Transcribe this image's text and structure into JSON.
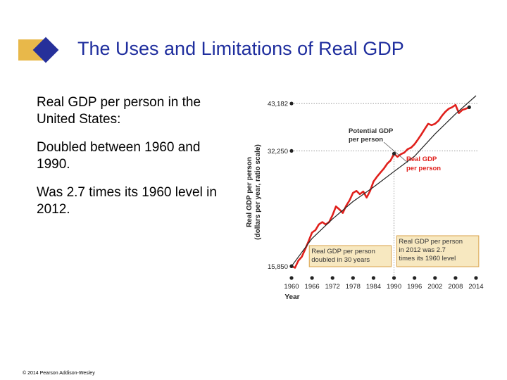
{
  "slide": {
    "title": "The Uses and Limitations of Real GDP",
    "bullets": [
      "Real GDP per person in the United States:",
      "Doubled between 1960 and 1990.",
      "Was 2.7 times its 1960 level in 2012."
    ],
    "copyright": "© 2014 Pearson Addison-Wesley"
  },
  "chart_data": {
    "type": "line",
    "xlabel": "Year",
    "ylabel_lines": [
      "Real GDP per person",
      "(dollars per year, ratio scale)"
    ],
    "x_ticks": [
      1960,
      1966,
      1972,
      1978,
      1984,
      1990,
      1996,
      2002,
      2008,
      2014
    ],
    "y_ticks": [
      15850,
      32250,
      43182
    ],
    "y_tick_labels": [
      "15,850",
      "32,250",
      "43,182"
    ],
    "xlim": [
      1960,
      2014
    ],
    "ylim": [
      15000,
      45500
    ],
    "y_scale": "log",
    "grid": false,
    "series": [
      {
        "name": "Potential GDP per person",
        "color": "#222222",
        "x": [
          1960,
          1966,
          1972,
          1978,
          1984,
          1990,
          1996,
          2002,
          2008,
          2014
        ],
        "y": [
          15850,
          18800,
          21200,
          23600,
          25800,
          28400,
          31200,
          35800,
          40500,
          45300
        ]
      },
      {
        "name": "Real GDP per person",
        "color": "#e0201c",
        "x": [
          1960,
          1961,
          1962,
          1963,
          1964,
          1965,
          1966,
          1967,
          1968,
          1969,
          1970,
          1971,
          1972,
          1973,
          1974,
          1975,
          1976,
          1977,
          1978,
          1979,
          1980,
          1981,
          1982,
          1983,
          1984,
          1985,
          1986,
          1987,
          1988,
          1989,
          1990,
          1991,
          1992,
          1993,
          1994,
          1995,
          1996,
          1997,
          1998,
          1999,
          2000,
          2001,
          2002,
          2003,
          2004,
          2005,
          2006,
          2007,
          2008,
          2009,
          2010,
          2011,
          2012
        ],
        "y": [
          15850,
          15700,
          16400,
          16800,
          17600,
          18500,
          19500,
          19800,
          20500,
          20800,
          20500,
          20800,
          21700,
          22900,
          22500,
          22000,
          23000,
          23800,
          24900,
          25200,
          24700,
          25100,
          24200,
          25200,
          26700,
          27500,
          28200,
          28900,
          29800,
          30400,
          31700,
          31100,
          31600,
          31900,
          32600,
          32900,
          33600,
          34600,
          35700,
          36900,
          38100,
          37800,
          38100,
          38800,
          40000,
          41000,
          41800,
          42200,
          42800,
          40700,
          41500,
          41800,
          42200
        ]
      }
    ],
    "marker_years": [
      1960,
      1990,
      2012
    ],
    "annotations": [
      {
        "lines": [
          "Real GDP per person",
          "doubled in 30 years"
        ]
      },
      {
        "lines": [
          "Real GDP per person",
          "in 2012 was 2.7",
          "times its 1960 level"
        ]
      }
    ],
    "ann_fill": "#f7e8c0",
    "ann_stroke": "#d9a24a"
  }
}
